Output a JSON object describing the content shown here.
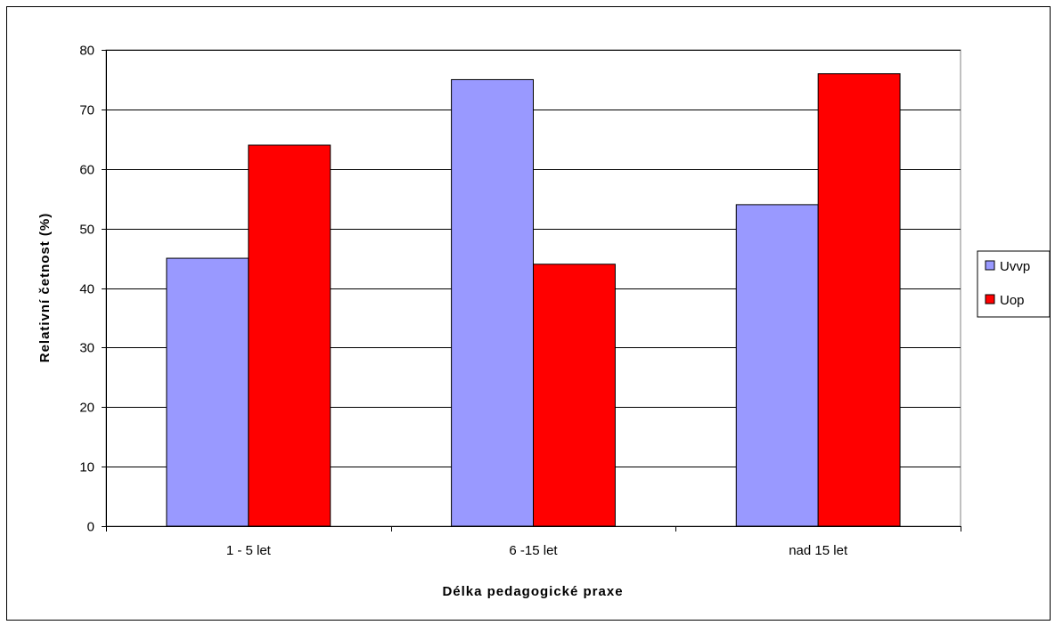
{
  "chart_data": {
    "type": "bar",
    "categories": [
      "1 - 5 let",
      "6 -15 let",
      "nad 15 let"
    ],
    "series": [
      {
        "name": "Uvvp",
        "values": [
          45,
          75,
          54
        ],
        "color": "#9999ff"
      },
      {
        "name": "Uop",
        "values": [
          64,
          44,
          76
        ],
        "color": "#ff0000"
      }
    ],
    "xlabel": "Délka pedagogické praxe",
    "ylabel": "Relativní četnost (%)",
    "ylim": [
      0,
      80
    ],
    "yticks": [
      0,
      10,
      20,
      30,
      40,
      50,
      60,
      70,
      80
    ],
    "grid": true,
    "legend": "right",
    "plot_background": "#ffffff",
    "grid_color": "#000000"
  }
}
